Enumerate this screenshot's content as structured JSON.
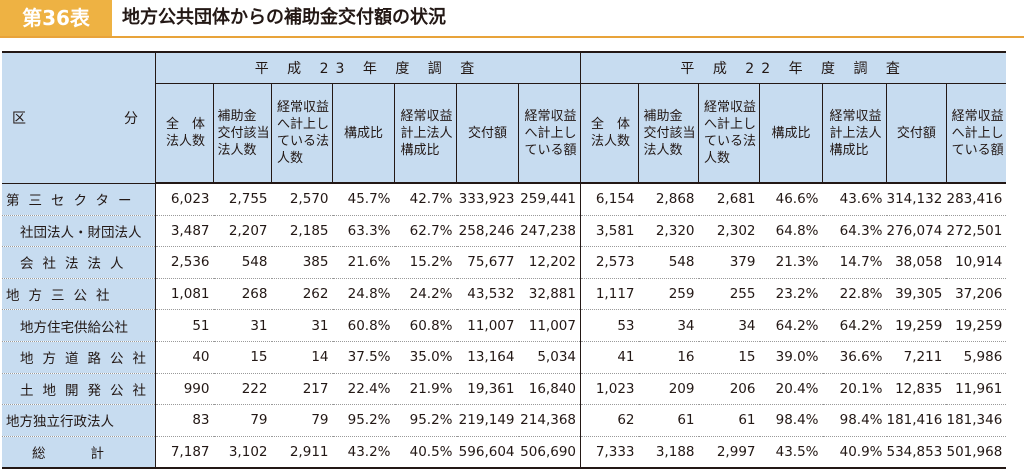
{
  "header": {
    "badge": "第36表",
    "title": "地方公共団体からの補助金交付額の状況"
  },
  "table": {
    "corner_left": "区",
    "corner_right": "分",
    "group_23": "平 成 23 年 度 調 査",
    "group_22": "平 成 22 年 度 調 査",
    "columns": [
      "全　体\n法人数",
      "補助金\n交付該当\n法人数",
      "経常収益\nへ計上し\nている法\n人数",
      "構成比",
      "経常収益\n計上法人\n構成比",
      "交付額",
      "経常収益\nへ計上し\nている額"
    ],
    "rows": [
      {
        "label": "第三セクター",
        "v23": [
          "6,023",
          "2,755",
          "2,570",
          "45.7%",
          "42.7%",
          "333,923",
          "259,441"
        ],
        "v22": [
          "6,154",
          "2,868",
          "2,681",
          "46.6%",
          "43.6%",
          "314,132",
          "283,416"
        ]
      },
      {
        "label": "社団法人・財団法人",
        "v23": [
          "3,487",
          "2,207",
          "2,185",
          "63.3%",
          "62.7%",
          "258,246",
          "247,238"
        ],
        "v22": [
          "3,581",
          "2,320",
          "2,302",
          "64.8%",
          "64.3%",
          "276,074",
          "272,501"
        ]
      },
      {
        "label": "会社法法人",
        "v23": [
          "2,536",
          "548",
          "385",
          "21.6%",
          "15.2%",
          "75,677",
          "12,202"
        ],
        "v22": [
          "2,573",
          "548",
          "379",
          "21.3%",
          "14.7%",
          "38,058",
          "10,914"
        ]
      },
      {
        "label": "地方三公社",
        "v23": [
          "1,081",
          "268",
          "262",
          "24.8%",
          "24.2%",
          "43,532",
          "32,881"
        ],
        "v22": [
          "1,117",
          "259",
          "255",
          "23.2%",
          "22.8%",
          "39,305",
          "37,206"
        ]
      },
      {
        "label": "地方住宅供給公社",
        "v23": [
          "51",
          "31",
          "31",
          "60.8%",
          "60.8%",
          "11,007",
          "11,007"
        ],
        "v22": [
          "53",
          "34",
          "34",
          "64.2%",
          "64.2%",
          "19,259",
          "19,259"
        ]
      },
      {
        "label": "地方道路公社",
        "v23": [
          "40",
          "15",
          "14",
          "37.5%",
          "35.0%",
          "13,164",
          "5,034"
        ],
        "v22": [
          "41",
          "16",
          "15",
          "39.0%",
          "36.6%",
          "7,211",
          "5,986"
        ]
      },
      {
        "label": "土地開発公社",
        "v23": [
          "990",
          "222",
          "217",
          "22.4%",
          "21.9%",
          "19,361",
          "16,840"
        ],
        "v22": [
          "1,023",
          "209",
          "206",
          "20.4%",
          "20.1%",
          "12,835",
          "11,961"
        ]
      },
      {
        "label": "地方独立行政法人",
        "v23": [
          "83",
          "79",
          "79",
          "95.2%",
          "95.2%",
          "219,149",
          "214,368"
        ],
        "v22": [
          "62",
          "61",
          "61",
          "98.4%",
          "98.4%",
          "181,416",
          "181,346"
        ]
      },
      {
        "label": "総　　計",
        "v23": [
          "7,187",
          "3,102",
          "2,911",
          "43.2%",
          "40.5%",
          "596,604",
          "506,690"
        ],
        "v22": [
          "7,333",
          "3,188",
          "2,997",
          "43.5%",
          "40.9%",
          "534,853",
          "501,968"
        ]
      }
    ]
  }
}
